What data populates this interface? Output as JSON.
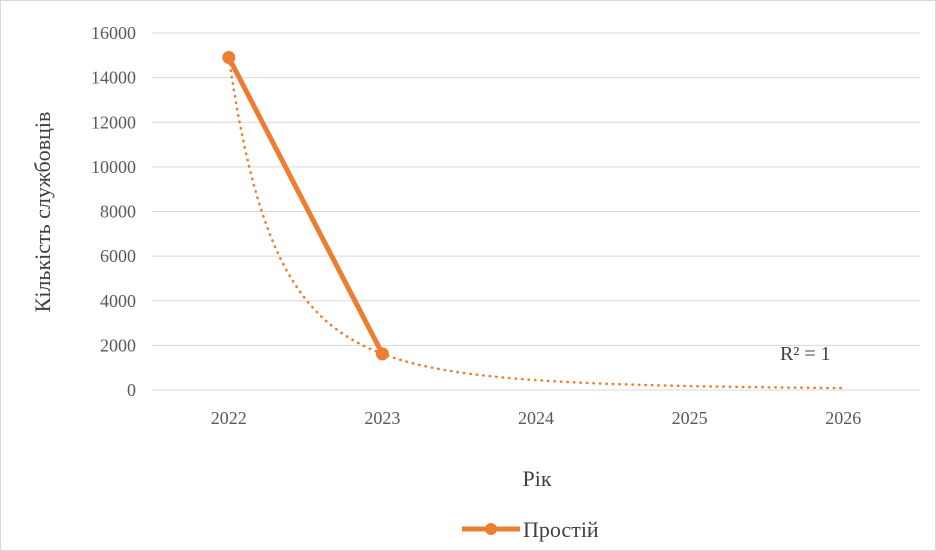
{
  "chart_data": {
    "type": "line",
    "title": "",
    "xlabel": "Рік",
    "ylabel": "Кількість службовців",
    "categories": [
      "2022",
      "2023",
      "2024",
      "2025",
      "2026"
    ],
    "ylim": [
      0,
      16000
    ],
    "yticks": [
      "0",
      "2000",
      "4000",
      "6000",
      "8000",
      "10000",
      "12000",
      "14000",
      "16000"
    ],
    "grid": true,
    "legend_position": "bottom",
    "series": [
      {
        "name": "Простій",
        "values": [
          14900,
          1620,
          null,
          null,
          null
        ],
        "color": "#ED7D31"
      }
    ],
    "trendline": {
      "type": "power",
      "style": "dotted",
      "color": "#ED7D31",
      "values": [
        14900,
        1620,
        440,
        180,
        90
      ],
      "label": "R² = 1"
    }
  }
}
